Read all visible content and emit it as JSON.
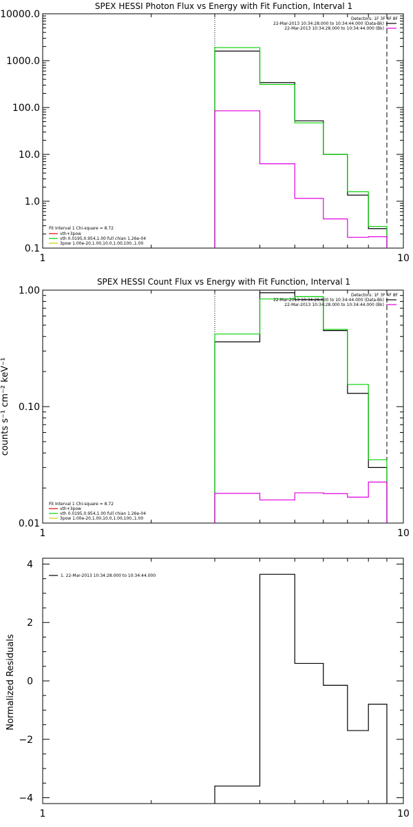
{
  "chart_data": [
    {
      "type": "line",
      "title": "SPEX HESSI Photon Flux vs Energy with Fit Function, Interval 1",
      "xscale": "log",
      "yscale": "log",
      "xlim": [
        1,
        10
      ],
      "ylim": [
        0.1,
        10000
      ],
      "x_tick_labels": [
        "1",
        "10"
      ],
      "y_tick_labels": [
        "0.1",
        "1.0",
        "10.0",
        "100.0",
        "1000.0",
        "10000.0"
      ],
      "ylabel": "",
      "bin_edges": [
        3,
        4,
        5,
        6,
        7,
        8,
        9
      ],
      "series": [
        {
          "color": "#000000",
          "values": [
            1600,
            340,
            52,
            10,
            1.35,
            0.26
          ]
        },
        {
          "color": "#00d000",
          "values": [
            1900,
            310,
            47,
            10,
            1.6,
            0.29
          ]
        },
        {
          "color": "#e000e0",
          "values": [
            85,
            6.3,
            1.15,
            0.42,
            0.17,
            0.175
          ]
        }
      ],
      "vlines": [
        {
          "x": 3,
          "style": "dotted"
        },
        {
          "x": 9,
          "style": "dashed"
        }
      ],
      "legend_right": {
        "header": "Detectors: 1F 3F 4F 8F",
        "entries": [
          {
            "text": "22-Mar-2013 10:34:28.000 to 10:34:44.000 (Data-Bk)",
            "color": "#000000"
          },
          {
            "text": "22-Mar-2013 10:34:28.000 to 10:34:44.000 (Bk)",
            "color": "#e000e0"
          }
        ]
      },
      "legend_left": {
        "header": "Fit Interval  1    Chi-square = 8.72",
        "entries": [
          {
            "text": "vth+3pow",
            "color": "#e00000"
          },
          {
            "text": "vth 0.0195,0.954,1.00  full chian 1.26e-04",
            "color": "#00d000"
          },
          {
            "text": "3pow 1.00e-20,1.00,10.0,1.00,100.,1.00",
            "color": "#d0d000"
          }
        ]
      }
    },
    {
      "type": "line",
      "title": "SPEX HESSI Count Flux vs Energy with Fit Function, Interval 1",
      "xscale": "log",
      "yscale": "log",
      "xlim": [
        1,
        10
      ],
      "ylim": [
        0.01,
        1
      ],
      "x_tick_labels": [
        "1",
        "10"
      ],
      "y_tick_labels": [
        "0.01",
        "0.10",
        "1.00"
      ],
      "ylabel": "counts s⁻¹ cm⁻² keV⁻¹",
      "bin_edges": [
        3,
        4,
        5,
        6,
        7,
        8,
        9
      ],
      "series": [
        {
          "color": "#000000",
          "values": [
            0.36,
            0.95,
            0.83,
            0.45,
            0.13,
            0.03
          ]
        },
        {
          "color": "#00d000",
          "values": [
            0.42,
            0.84,
            0.88,
            0.46,
            0.155,
            0.035
          ]
        },
        {
          "color": "#e000e0",
          "values": [
            0.018,
            0.0158,
            0.0182,
            0.0179,
            0.0167,
            0.0225
          ]
        }
      ],
      "vlines": [
        {
          "x": 3,
          "style": "dotted"
        },
        {
          "x": 9,
          "style": "dashed"
        }
      ],
      "legend_right": {
        "header": "Detectors: 1F 3F 4F 8F",
        "entries": [
          {
            "text": "22-Mar-2013 10:34:28.000 to 10:34:44.000 (Data-Bk)",
            "color": "#000000"
          },
          {
            "text": "22-Mar-2013 10:34:28.000 to 10:34:44.000 (Bk)",
            "color": "#e000e0"
          }
        ]
      },
      "legend_left": {
        "header": "Fit Interval  1    Chi-square = 8.72",
        "entries": [
          {
            "text": "vth+3pow",
            "color": "#e00000"
          },
          {
            "text": "vth 0.0195,0.954,1.00  full chian 1.26e-04",
            "color": "#00d000"
          },
          {
            "text": "3pow 1.00e-20,1.00,10.0,1.00,100.,1.00",
            "color": "#d0d000"
          }
        ]
      }
    },
    {
      "type": "line",
      "title": "",
      "xscale": "log",
      "yscale": "linear",
      "xlim": [
        1,
        10
      ],
      "ylim": [
        -4.2,
        4.2
      ],
      "x_tick_labels": [
        "1",
        "10"
      ],
      "y_tick_values": [
        -4,
        -2,
        0,
        2,
        4
      ],
      "ylabel": "Normalized Residuals",
      "bin_edges": [
        3,
        4,
        5,
        6,
        7,
        8,
        9
      ],
      "series": [
        {
          "color": "#000000",
          "values": [
            -3.6,
            3.65,
            0.6,
            -0.15,
            -1.7,
            -0.8
          ]
        }
      ],
      "legend_left": {
        "header": "",
        "entries": [
          {
            "text": "1. 22-Mar-2013 10:34:28.000 to 10:34:44.000",
            "color": "#000000"
          }
        ]
      }
    }
  ]
}
